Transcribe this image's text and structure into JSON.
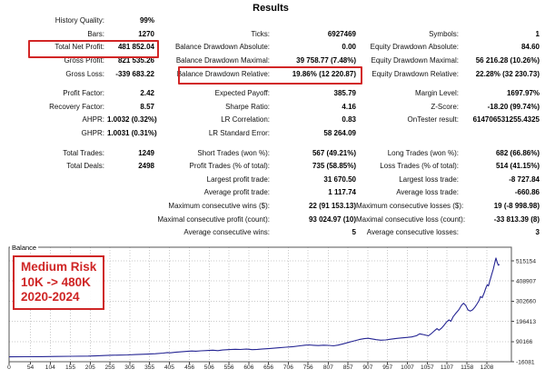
{
  "title": "Results",
  "stats": {
    "rows": [
      {
        "l1": "History Quality:",
        "v1": "99%",
        "l2": "",
        "v2": "",
        "l3": "",
        "v3": ""
      },
      {
        "l1": "Bars:",
        "v1": "1270",
        "l2": "Ticks:",
        "v2": "6927469",
        "l3": "Symbols:",
        "v3": "1"
      },
      {
        "l1": "Total Net Profit:",
        "v1": "481 852.04",
        "l2": "Balance Drawdown Absolute:",
        "v2": "0.00",
        "l3": "Equity Drawdown Absolute:",
        "v3": "84.60"
      },
      {
        "l1": "Gross Profit:",
        "v1": "821 535.26",
        "l2": "Balance Drawdown Maximal:",
        "v2": "39 758.77 (7.48%)",
        "l3": "Equity Drawdown Maximal:",
        "v3": "56 216.28 (10.26%)"
      },
      {
        "l1": "Gross Loss:",
        "v1": "-339 683.22",
        "l2": "Balance Drawdown Relative:",
        "v2": "19.86% (12 220.87)",
        "l3": "Equity Drawdown Relative:",
        "v3": "22.28% (32 230.73)"
      },
      {
        "l1": "Profit Factor:",
        "v1": "2.42",
        "l2": "Expected Payoff:",
        "v2": "385.79",
        "l3": "Margin Level:",
        "v3": "1697.97%"
      },
      {
        "l1": "Recovery Factor:",
        "v1": "8.57",
        "l2": "Sharpe Ratio:",
        "v2": "4.16",
        "l3": "Z-Score:",
        "v3": "-18.20 (99.74%)"
      },
      {
        "l1": "AHPR:",
        "v1": "1.0032 (0.32%)",
        "l2": "LR Correlation:",
        "v2": "0.83",
        "l3": "OnTester result:",
        "v3": "614706531255.4325"
      },
      {
        "l1": "GHPR:",
        "v1": "1.0031 (0.31%)",
        "l2": "LR Standard Error:",
        "v2": "58 264.09",
        "l3": "",
        "v3": ""
      },
      {
        "l1": "Total Trades:",
        "v1": "1249",
        "l2": "Short Trades (won %):",
        "v2": "567 (49.21%)",
        "l3": "Long Trades (won %):",
        "v3": "682 (66.86%)"
      },
      {
        "l1": "Total Deals:",
        "v1": "2498",
        "l2": "Profit Trades (% of total):",
        "v2": "735 (58.85%)",
        "l3": "Loss Trades (% of total):",
        "v3": "514 (41.15%)"
      },
      {
        "l1": "",
        "v1": "",
        "l2": "Largest profit trade:",
        "v2": "31 670.50",
        "l3": "Largest loss trade:",
        "v3": "-8 727.84"
      },
      {
        "l1": "",
        "v1": "",
        "l2": "Average profit trade:",
        "v2": "1 117.74",
        "l3": "Average loss trade:",
        "v3": "-660.86"
      },
      {
        "l1": "",
        "v1": "",
        "l2": "Maximum consecutive wins ($):",
        "v2": "22 (91 153.13)",
        "l3": "Maximum consecutive losses ($):",
        "v3": "19 (-8 998.98)"
      },
      {
        "l1": "",
        "v1": "",
        "l2": "Maximal consecutive profit (count):",
        "v2": "93 024.97 (10)",
        "l3": "Maximal consecutive loss (count):",
        "v3": "-33 813.39 (8)"
      },
      {
        "l1": "",
        "v1": "",
        "l2": "Average consecutive wins:",
        "v2": "5",
        "l3": "Average consecutive losses:",
        "v3": "3"
      }
    ]
  },
  "chart_data": {
    "type": "line",
    "title": "Balance",
    "xlabel": "",
    "ylabel": "",
    "x_max": 1270,
    "y_min": -16081,
    "y_max": 587000,
    "grid": true,
    "legend_position": "none",
    "line_color": "#252593",
    "x_ticks": [
      0,
      54,
      104,
      155,
      205,
      255,
      305,
      355,
      405,
      456,
      506,
      556,
      606,
      656,
      706,
      756,
      807,
      857,
      907,
      957,
      1007,
      1057,
      1107,
      1158,
      1208
    ],
    "y_ticks": [
      -16081,
      90166,
      196413,
      302660,
      408907,
      515154
    ],
    "annotation": {
      "color": "#cf2626",
      "lines": [
        "Medium Risk",
        "10K -> 480K",
        "2020-2024"
      ]
    },
    "series": [
      {
        "name": "Balance",
        "points": [
          [
            0,
            10000
          ],
          [
            40,
            10300
          ],
          [
            80,
            10800
          ],
          [
            120,
            11500
          ],
          [
            160,
            12500
          ],
          [
            200,
            13600
          ],
          [
            225,
            15500
          ],
          [
            245,
            17000
          ],
          [
            262,
            18500
          ],
          [
            280,
            19000
          ],
          [
            300,
            20000
          ],
          [
            320,
            21500
          ],
          [
            345,
            23500
          ],
          [
            370,
            26000
          ],
          [
            390,
            29500
          ],
          [
            400,
            32500
          ],
          [
            408,
            31000
          ],
          [
            420,
            33500
          ],
          [
            435,
            36000
          ],
          [
            450,
            38500
          ],
          [
            462,
            40500
          ],
          [
            472,
            39500
          ],
          [
            485,
            41500
          ],
          [
            500,
            43000
          ],
          [
            515,
            44500
          ],
          [
            528,
            42500
          ],
          [
            540,
            45500
          ],
          [
            558,
            48000
          ],
          [
            572,
            49500
          ],
          [
            585,
            48500
          ],
          [
            600,
            50500
          ],
          [
            615,
            47500
          ],
          [
            628,
            49000
          ],
          [
            642,
            51500
          ],
          [
            660,
            54000
          ],
          [
            680,
            57000
          ],
          [
            700,
            60500
          ],
          [
            718,
            63500
          ],
          [
            735,
            67500
          ],
          [
            748,
            71000
          ],
          [
            758,
            72500
          ],
          [
            770,
            70500
          ],
          [
            782,
            69000
          ],
          [
            795,
            71000
          ],
          [
            808,
            70000
          ],
          [
            820,
            67500
          ],
          [
            832,
            71500
          ],
          [
            845,
            78000
          ],
          [
            858,
            86000
          ],
          [
            872,
            93500
          ],
          [
            885,
            100500
          ],
          [
            898,
            105500
          ],
          [
            908,
            107500
          ],
          [
            918,
            104000
          ],
          [
            928,
            100000
          ],
          [
            940,
            97500
          ],
          [
            952,
            99000
          ],
          [
            965,
            102500
          ],
          [
            978,
            106500
          ],
          [
            992,
            109500
          ],
          [
            1005,
            111500
          ],
          [
            1018,
            114500
          ],
          [
            1030,
            121000
          ],
          [
            1038,
            131000
          ],
          [
            1045,
            128000
          ],
          [
            1052,
            124500
          ],
          [
            1060,
            120500
          ],
          [
            1068,
            133000
          ],
          [
            1075,
            146000
          ],
          [
            1082,
            158000
          ],
          [
            1087,
            150000
          ],
          [
            1093,
            160000
          ],
          [
            1100,
            177000
          ],
          [
            1106,
            193000
          ],
          [
            1112,
            204000
          ],
          [
            1117,
            197000
          ],
          [
            1123,
            222000
          ],
          [
            1130,
            240000
          ],
          [
            1137,
            257000
          ],
          [
            1144,
            281000
          ],
          [
            1149,
            292000
          ],
          [
            1155,
            279000
          ],
          [
            1160,
            257000
          ],
          [
            1166,
            251000
          ],
          [
            1172,
            257000
          ],
          [
            1178,
            272000
          ],
          [
            1183,
            288000
          ],
          [
            1188,
            305000
          ],
          [
            1192,
            327000
          ],
          [
            1196,
            321000
          ],
          [
            1201,
            346000
          ],
          [
            1205,
            370000
          ],
          [
            1209,
            390000
          ],
          [
            1212,
            383000
          ],
          [
            1216,
            413000
          ],
          [
            1220,
            442000
          ],
          [
            1224,
            470000
          ],
          [
            1228,
            505000
          ],
          [
            1231,
            530000
          ],
          [
            1234,
            508000
          ],
          [
            1237,
            492000
          ],
          [
            1240,
            497000
          ]
        ]
      }
    ]
  }
}
